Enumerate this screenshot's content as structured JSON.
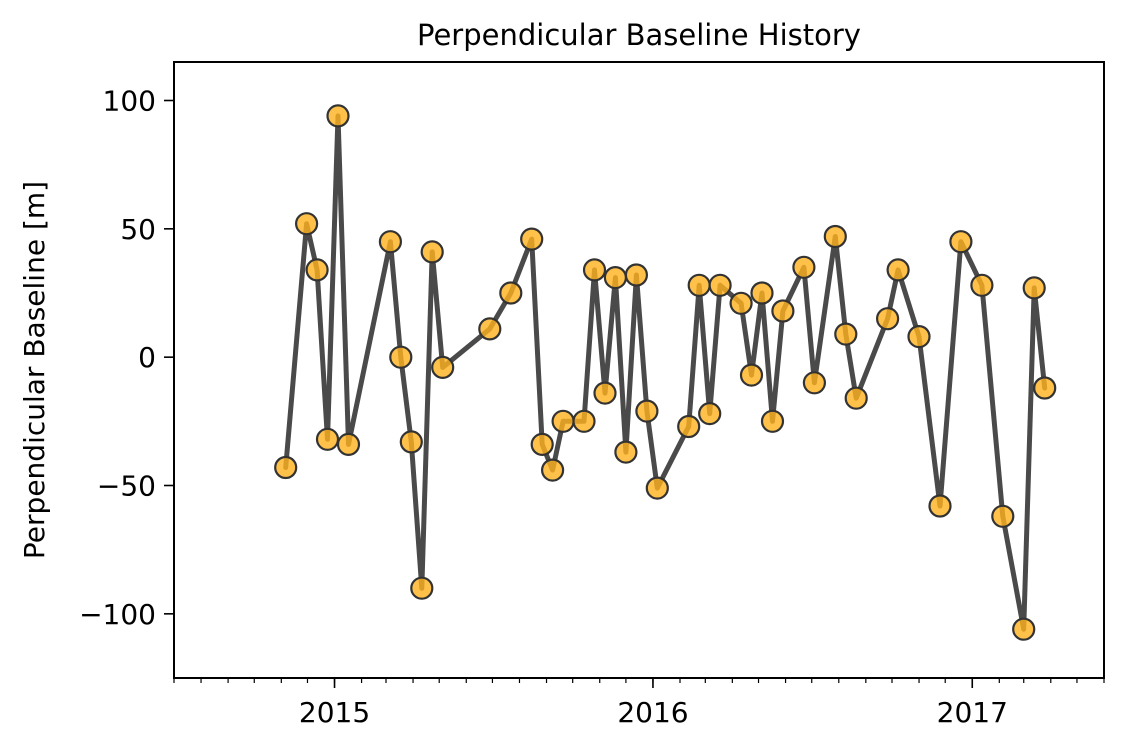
{
  "chart_data": {
    "type": "line",
    "title": "Perpendicular Baseline History",
    "xlabel": "",
    "ylabel": "Perpendicular Baseline [m]",
    "xlim": [
      "2014-07-01",
      "2017-06-01"
    ],
    "ylim": [
      -125,
      115
    ],
    "x_ticks": [
      {
        "date": "2015-01-01",
        "label": "2015"
      },
      {
        "date": "2016-01-01",
        "label": "2016"
      },
      {
        "date": "2017-01-01",
        "label": "2017"
      }
    ],
    "y_ticks": [
      {
        "value": 100,
        "label": "100"
      },
      {
        "value": 50,
        "label": "50"
      },
      {
        "value": 0,
        "label": "0"
      },
      {
        "value": -50,
        "label": "−50"
      },
      {
        "value": -100,
        "label": "−100"
      }
    ],
    "grid": false,
    "colors": {
      "line": "#4a4a4a",
      "marker_fill": "#ffb11b",
      "marker_edge": "#333333"
    },
    "series": [
      {
        "x": [
          "2014-11-06",
          "2014-11-30",
          "2014-12-12",
          "2014-12-24",
          "2015-01-05",
          "2015-01-17",
          "2015-03-06",
          "2015-03-18",
          "2015-03-30",
          "2015-04-11",
          "2015-04-23",
          "2015-05-05",
          "2015-06-28",
          "2015-07-22",
          "2015-08-15",
          "2015-08-27",
          "2015-09-08",
          "2015-09-20",
          "2015-10-14",
          "2015-10-26",
          "2015-11-07",
          "2015-11-19",
          "2015-12-01",
          "2015-12-13",
          "2015-12-25",
          "2016-01-06",
          "2016-02-11",
          "2016-02-23",
          "2016-03-06",
          "2016-03-18",
          "2016-04-11",
          "2016-04-23",
          "2016-05-05",
          "2016-05-17",
          "2016-05-29",
          "2016-06-22",
          "2016-07-04",
          "2016-07-28",
          "2016-08-09",
          "2016-08-21",
          "2016-09-26",
          "2016-10-08",
          "2016-11-01",
          "2016-11-25",
          "2016-12-19",
          "2017-01-12",
          "2017-02-05",
          "2017-03-01",
          "2017-03-13",
          "2017-03-25"
        ],
        "y": [
          -43,
          52,
          34,
          -32,
          94,
          -34,
          45,
          0,
          -33,
          -90,
          41,
          -4,
          11,
          25,
          46,
          -34,
          -44,
          -25,
          -25,
          34,
          -14,
          31,
          -37,
          32,
          -21,
          -51,
          -27,
          28,
          -22,
          28,
          21,
          -7,
          25,
          -25,
          18,
          35,
          -10,
          47,
          9,
          -16,
          15,
          34,
          8,
          -58,
          45,
          28,
          -62,
          -106,
          27,
          -12
        ]
      }
    ]
  }
}
